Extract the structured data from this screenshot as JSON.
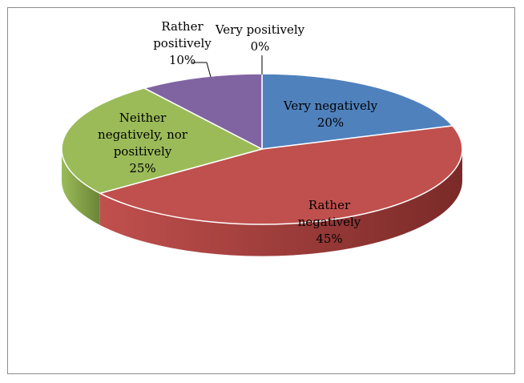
{
  "chart_data": {
    "type": "pie",
    "style": "3d",
    "title": "",
    "slices": [
      {
        "label": "Very negatively",
        "value": 20,
        "pct_text": "20%",
        "color": "#4f81bd",
        "side_color": "#2e4d74"
      },
      {
        "label": "Rather negatively",
        "value": 45,
        "pct_text": "45%",
        "color": "#c0504d",
        "side_color": "#7a2a28"
      },
      {
        "label": "Neither negatively, nor positively",
        "value": 25,
        "pct_text": "25%",
        "color": "#9bbb59",
        "side_color": "#6a8436"
      },
      {
        "label": "Rather positively",
        "value": 10,
        "pct_text": "10%",
        "color": "#8064a2",
        "side_color": "#57406f"
      },
      {
        "label": "Very positively",
        "value": 0,
        "pct_text": "0%",
        "color": "#4bacc6",
        "side_color": "#2e7487"
      }
    ]
  }
}
